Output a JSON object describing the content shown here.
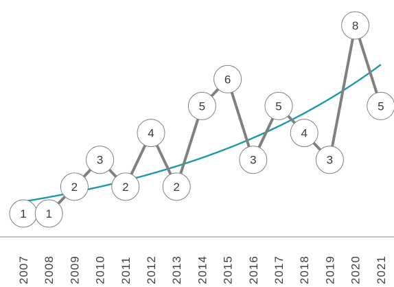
{
  "chart_data": {
    "type": "line",
    "x": [
      "2007",
      "2008",
      "2009",
      "2010",
      "2011",
      "2012",
      "2013",
      "2014",
      "2015",
      "2016",
      "2017",
      "2018",
      "2019",
      "2020",
      "2021"
    ],
    "series": [
      {
        "values": [
          1,
          1,
          2,
          3,
          2,
          4,
          2,
          5,
          6,
          3,
          5,
          4,
          3,
          8,
          5
        ],
        "color": "#808080"
      }
    ],
    "trendline": {
      "type": "exponential",
      "color": "#1a9aa6"
    },
    "marker_fill": "#ffffff",
    "marker_stroke": "#808080",
    "ylim": [
      1,
      8
    ],
    "grid": false,
    "legend": "none",
    "title": "",
    "xlabel": "",
    "ylabel": ""
  }
}
